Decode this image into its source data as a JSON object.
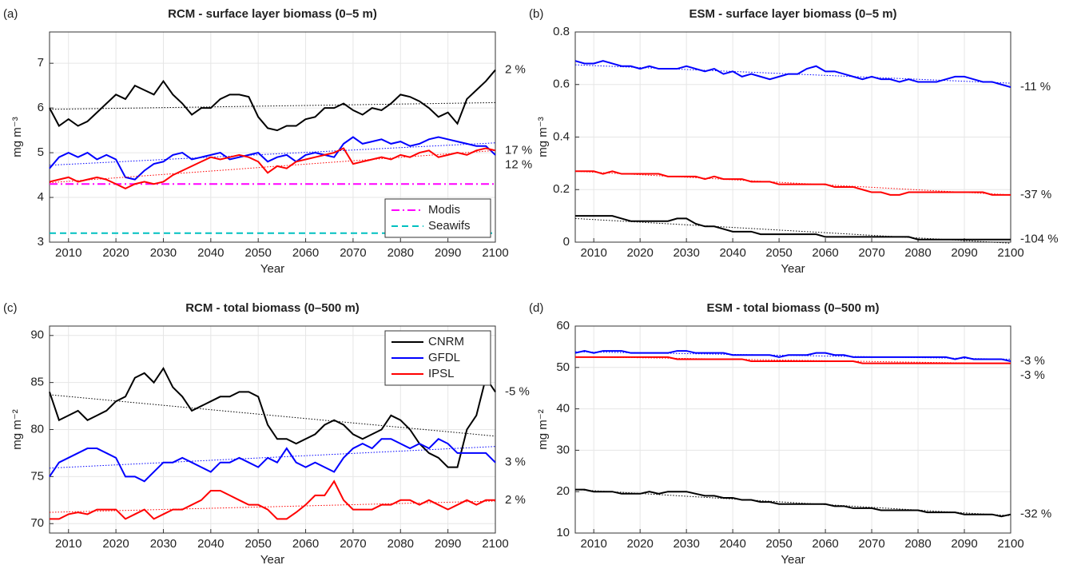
{
  "chart_data": [
    {
      "type": "line",
      "panel_label": "(a)",
      "title": "RCM - surface layer biomass (0–5 m)",
      "xlabel": "Year",
      "ylabel": "mg m⁻³",
      "x": [
        2006,
        2008,
        2010,
        2012,
        2014,
        2016,
        2018,
        2020,
        2022,
        2024,
        2026,
        2028,
        2030,
        2032,
        2034,
        2036,
        2038,
        2040,
        2042,
        2044,
        2046,
        2048,
        2050,
        2052,
        2054,
        2056,
        2058,
        2060,
        2062,
        2064,
        2066,
        2068,
        2070,
        2072,
        2074,
        2076,
        2078,
        2080,
        2082,
        2084,
        2086,
        2088,
        2090,
        2092,
        2094,
        2096,
        2098,
        2100
      ],
      "xlim": [
        2006,
        2100
      ],
      "xticks": [
        2010,
        2020,
        2030,
        2040,
        2050,
        2060,
        2070,
        2080,
        2090,
        2100
      ],
      "ylim": [
        3,
        7.7
      ],
      "yticks": [
        3,
        4,
        5,
        6,
        7
      ],
      "grid": true,
      "legend": "lower right",
      "series": [
        {
          "color": "#000000",
          "annotation": "2 %",
          "trend": [
            5.97,
            6.12
          ],
          "values": [
            6.0,
            5.6,
            5.75,
            5.6,
            5.7,
            5.9,
            6.1,
            6.3,
            6.2,
            6.5,
            6.4,
            6.3,
            6.6,
            6.3,
            6.1,
            5.85,
            6.0,
            6.0,
            6.2,
            6.3,
            6.3,
            6.25,
            5.8,
            5.55,
            5.5,
            5.6,
            5.6,
            5.75,
            5.8,
            6.0,
            6.0,
            6.1,
            5.95,
            5.85,
            6.0,
            5.95,
            6.1,
            6.3,
            6.25,
            6.15,
            6.0,
            5.8,
            5.9,
            5.65,
            6.2,
            6.4,
            6.6,
            6.85
          ]
        },
        {
          "color": "#0000ff",
          "annotation": "12 %",
          "trend": [
            4.72,
            5.22
          ],
          "values": [
            4.65,
            4.9,
            5.0,
            4.9,
            5.0,
            4.85,
            4.95,
            4.85,
            4.45,
            4.4,
            4.6,
            4.75,
            4.8,
            4.95,
            5.0,
            4.85,
            4.9,
            4.95,
            5.0,
            4.85,
            4.9,
            4.95,
            5.0,
            4.8,
            4.9,
            4.95,
            4.8,
            4.95,
            5.0,
            4.95,
            4.9,
            5.2,
            5.35,
            5.2,
            5.25,
            5.3,
            5.2,
            5.25,
            5.15,
            5.2,
            5.3,
            5.35,
            5.3,
            5.25,
            5.2,
            5.15,
            5.15,
            4.95
          ]
        },
        {
          "color": "#ff0000",
          "annotation": "17 %",
          "trend": [
            4.33,
            5.05
          ],
          "values": [
            4.35,
            4.4,
            4.45,
            4.35,
            4.4,
            4.45,
            4.4,
            4.3,
            4.2,
            4.3,
            4.35,
            4.3,
            4.35,
            4.5,
            4.6,
            4.7,
            4.8,
            4.9,
            4.85,
            4.9,
            4.95,
            4.9,
            4.8,
            4.55,
            4.7,
            4.65,
            4.8,
            4.85,
            4.9,
            4.95,
            5.0,
            5.1,
            4.75,
            4.8,
            4.85,
            4.9,
            4.85,
            4.95,
            4.9,
            5.0,
            5.05,
            4.9,
            4.95,
            5.0,
            4.95,
            5.05,
            5.1,
            5.05
          ]
        }
      ],
      "ref_lines": [
        {
          "name": "Modis",
          "color": "#ff00ff",
          "value": 4.3,
          "dash": "10 4 2 4"
        },
        {
          "name": "Seawifs",
          "color": "#00c0c0",
          "value": 3.2,
          "dash": "8 5"
        }
      ]
    },
    {
      "type": "line",
      "panel_label": "(b)",
      "title": "ESM - surface layer biomass (0–5 m)",
      "xlabel": "Year",
      "ylabel": "mg m⁻³",
      "x": [
        2006,
        2008,
        2010,
        2012,
        2014,
        2016,
        2018,
        2020,
        2022,
        2024,
        2026,
        2028,
        2030,
        2032,
        2034,
        2036,
        2038,
        2040,
        2042,
        2044,
        2046,
        2048,
        2050,
        2052,
        2054,
        2056,
        2058,
        2060,
        2062,
        2064,
        2066,
        2068,
        2070,
        2072,
        2074,
        2076,
        2078,
        2080,
        2082,
        2084,
        2086,
        2088,
        2090,
        2092,
        2094,
        2096,
        2098,
        2100
      ],
      "xlim": [
        2006,
        2100
      ],
      "xticks": [
        2010,
        2020,
        2030,
        2040,
        2050,
        2060,
        2070,
        2080,
        2090,
        2100
      ],
      "ylim": [
        0,
        0.8
      ],
      "yticks": [
        0,
        0.2,
        0.4,
        0.6,
        0.8
      ],
      "grid": true,
      "series": [
        {
          "color": "#0000ff",
          "annotation": "-11 %",
          "trend": [
            0.675,
            0.605
          ],
          "values": [
            0.69,
            0.68,
            0.68,
            0.69,
            0.68,
            0.67,
            0.67,
            0.66,
            0.67,
            0.66,
            0.66,
            0.66,
            0.67,
            0.66,
            0.65,
            0.66,
            0.64,
            0.65,
            0.63,
            0.64,
            0.63,
            0.62,
            0.63,
            0.64,
            0.64,
            0.66,
            0.67,
            0.65,
            0.65,
            0.64,
            0.63,
            0.62,
            0.63,
            0.62,
            0.62,
            0.61,
            0.62,
            0.61,
            0.61,
            0.61,
            0.62,
            0.63,
            0.63,
            0.62,
            0.61,
            0.61,
            0.6,
            0.59
          ]
        },
        {
          "color": "#ff0000",
          "annotation": "-37 %",
          "trend": [
            0.27,
            0.18
          ],
          "values": [
            0.27,
            0.27,
            0.27,
            0.26,
            0.27,
            0.26,
            0.26,
            0.26,
            0.26,
            0.26,
            0.25,
            0.25,
            0.25,
            0.25,
            0.24,
            0.25,
            0.24,
            0.24,
            0.24,
            0.23,
            0.23,
            0.23,
            0.22,
            0.22,
            0.22,
            0.22,
            0.22,
            0.22,
            0.21,
            0.21,
            0.21,
            0.2,
            0.19,
            0.19,
            0.18,
            0.18,
            0.19,
            0.19,
            0.19,
            0.19,
            0.19,
            0.19,
            0.19,
            0.19,
            0.19,
            0.18,
            0.18,
            0.18
          ]
        },
        {
          "color": "#000000",
          "annotation": "-104 %",
          "trend": [
            0.09,
            -0.004
          ],
          "values": [
            0.1,
            0.1,
            0.1,
            0.1,
            0.1,
            0.09,
            0.08,
            0.08,
            0.08,
            0.08,
            0.08,
            0.09,
            0.09,
            0.07,
            0.06,
            0.06,
            0.05,
            0.04,
            0.04,
            0.04,
            0.03,
            0.03,
            0.03,
            0.03,
            0.03,
            0.03,
            0.03,
            0.02,
            0.02,
            0.02,
            0.02,
            0.02,
            0.02,
            0.02,
            0.02,
            0.02,
            0.02,
            0.01,
            0.01,
            0.01,
            0.01,
            0.01,
            0.01,
            0.01,
            0.01,
            0.01,
            0.01,
            0.01
          ]
        }
      ]
    },
    {
      "type": "line",
      "panel_label": "(c)",
      "title": "RCM - total biomass (0–500 m)",
      "xlabel": "Year",
      "ylabel": "mg m⁻²",
      "x": [
        2006,
        2008,
        2010,
        2012,
        2014,
        2016,
        2018,
        2020,
        2022,
        2024,
        2026,
        2028,
        2030,
        2032,
        2034,
        2036,
        2038,
        2040,
        2042,
        2044,
        2046,
        2048,
        2050,
        2052,
        2054,
        2056,
        2058,
        2060,
        2062,
        2064,
        2066,
        2068,
        2070,
        2072,
        2074,
        2076,
        2078,
        2080,
        2082,
        2084,
        2086,
        2088,
        2090,
        2092,
        2094,
        2096,
        2098,
        2100
      ],
      "xlim": [
        2006,
        2100
      ],
      "xticks": [
        2010,
        2020,
        2030,
        2040,
        2050,
        2060,
        2070,
        2080,
        2090,
        2100
      ],
      "ylim": [
        69,
        91
      ],
      "yticks": [
        70,
        75,
        80,
        85,
        90
      ],
      "grid": true,
      "legend": "upper right",
      "series": [
        {
          "name": "CNRM",
          "color": "#000000",
          "annotation": "-5 %",
          "trend": [
            83.7,
            79.3
          ],
          "values": [
            84,
            81,
            81.5,
            82,
            81,
            81.5,
            82,
            83,
            83.5,
            85.5,
            86,
            85,
            86.5,
            84.5,
            83.5,
            82,
            82.5,
            83,
            83.5,
            83.5,
            84,
            84,
            83.5,
            80.5,
            79,
            79,
            78.5,
            79,
            79.5,
            80.5,
            81,
            80.5,
            79.5,
            79,
            79.5,
            80,
            81.5,
            81,
            80,
            78.5,
            77.5,
            77,
            76,
            76,
            80,
            81.5,
            85.5,
            84
          ]
        },
        {
          "name": "GFDL",
          "color": "#0000ff",
          "annotation": "3 %",
          "trend": [
            75.9,
            78.2
          ],
          "values": [
            75,
            76.5,
            77,
            77.5,
            78,
            78,
            77.5,
            77,
            75,
            75,
            74.5,
            75.5,
            76.5,
            76.5,
            77,
            76.5,
            76,
            75.5,
            76.5,
            76.5,
            77,
            76.5,
            76,
            77,
            76.5,
            78,
            76.5,
            76,
            76.5,
            76,
            75.5,
            77,
            78,
            78.5,
            78,
            79,
            79,
            78.5,
            78,
            78.5,
            78,
            79,
            78.5,
            77.5,
            77.5,
            77.5,
            77.5,
            76.5
          ]
        },
        {
          "name": "IPSL",
          "color": "#ff0000",
          "annotation": "2 %",
          "trend": [
            71.2,
            72.4
          ],
          "values": [
            70.5,
            70.5,
            71,
            71.2,
            71,
            71.5,
            71.5,
            71.5,
            70.5,
            71,
            71.5,
            70.5,
            71,
            71.5,
            71.5,
            72,
            72.5,
            73.5,
            73.5,
            73,
            72.5,
            72,
            72,
            71.5,
            70.5,
            70.5,
            71.2,
            72,
            73,
            73,
            74.5,
            72.5,
            71.5,
            71.5,
            71.5,
            72,
            72,
            72.5,
            72.5,
            72,
            72.5,
            72,
            71.5,
            72,
            72.5,
            72,
            72.5,
            72.5
          ]
        }
      ]
    },
    {
      "type": "line",
      "panel_label": "(d)",
      "title": "ESM - total biomass (0–500 m)",
      "xlabel": "Year",
      "ylabel": "mg m⁻²",
      "x": [
        2006,
        2008,
        2010,
        2012,
        2014,
        2016,
        2018,
        2020,
        2022,
        2024,
        2026,
        2028,
        2030,
        2032,
        2034,
        2036,
        2038,
        2040,
        2042,
        2044,
        2046,
        2048,
        2050,
        2052,
        2054,
        2056,
        2058,
        2060,
        2062,
        2064,
        2066,
        2068,
        2070,
        2072,
        2074,
        2076,
        2078,
        2080,
        2082,
        2084,
        2086,
        2088,
        2090,
        2092,
        2094,
        2096,
        2098,
        2100
      ],
      "xlim": [
        2006,
        2100
      ],
      "xticks": [
        2010,
        2020,
        2030,
        2040,
        2050,
        2060,
        2070,
        2080,
        2090,
        2100
      ],
      "ylim": [
        10,
        60
      ],
      "yticks": [
        10,
        20,
        30,
        40,
        50,
        60
      ],
      "grid": true,
      "series": [
        {
          "color": "#0000ff",
          "annotation": "-3 %",
          "trend": [
            53.8,
            52
          ],
          "values": [
            53.5,
            54,
            53.5,
            54,
            54,
            54,
            53.5,
            53.5,
            53.5,
            53.5,
            53.5,
            54,
            54,
            53.5,
            53.5,
            53.5,
            53.5,
            53,
            53,
            53,
            53,
            53,
            52.5,
            53,
            53,
            53,
            53.5,
            53.5,
            53,
            53,
            52.5,
            52.5,
            52.5,
            52.5,
            52.5,
            52.5,
            52.5,
            52.5,
            52.5,
            52.5,
            52.5,
            52,
            52.5,
            52,
            52,
            52,
            52,
            51.5
          ]
        },
        {
          "color": "#ff0000",
          "annotation": "-3 %",
          "trend": [
            52.6,
            50.9
          ],
          "values": [
            52.5,
            52.5,
            52.5,
            52.5,
            52.5,
            52.5,
            52.5,
            52.5,
            52.5,
            52.5,
            52.5,
            52,
            52,
            52,
            52,
            52,
            52,
            52,
            52,
            51.5,
            51.5,
            51.5,
            51.5,
            51.5,
            51.5,
            51.5,
            51.5,
            51.5,
            51.5,
            51.5,
            51.5,
            51,
            51,
            51,
            51,
            51,
            51,
            51,
            51,
            51,
            51,
            51,
            51,
            51,
            51,
            51,
            51,
            51
          ]
        },
        {
          "color": "#000000",
          "annotation": "-32 %",
          "trend": [
            20.5,
            14.2
          ],
          "values": [
            20.5,
            20.5,
            20,
            20,
            20,
            19.5,
            19.5,
            19.5,
            20,
            19.5,
            20,
            20,
            20,
            19.5,
            19,
            19,
            18.5,
            18.5,
            18,
            18,
            17.5,
            17.5,
            17,
            17,
            17,
            17,
            17,
            17,
            16.5,
            16.5,
            16,
            16,
            16,
            15.5,
            15.5,
            15.5,
            15.5,
            15.5,
            15,
            15,
            15,
            15,
            14.5,
            14.5,
            14.5,
            14.5,
            14,
            14.5
          ]
        }
      ]
    }
  ]
}
